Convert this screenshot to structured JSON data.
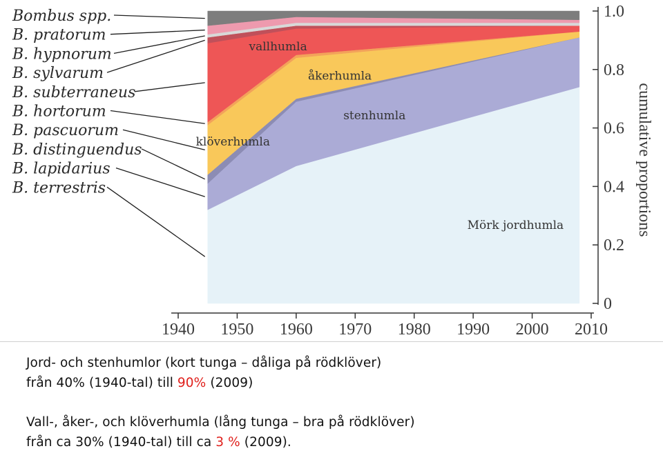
{
  "chart_data": {
    "type": "area",
    "stacked": true,
    "x": [
      1945,
      1960,
      2008
    ],
    "xticks": [
      "1940",
      "1950",
      "1960",
      "1970",
      "1980",
      "1990",
      "2000",
      "2010"
    ],
    "xlim": [
      1940,
      2010
    ],
    "yticks": [
      "0",
      "0.2",
      "0.4",
      "0.6",
      "0.8",
      "1.0"
    ],
    "ylim": [
      0,
      1.0
    ],
    "ylabel": "cumulative proportions",
    "series": [
      {
        "name": "B. terrestris",
        "values": [
          0.32,
          0.47,
          0.74
        ],
        "color": "#e6f2f8"
      },
      {
        "name": "B. lapidarius",
        "values": [
          0.09,
          0.22,
          0.17
        ],
        "color": "#ababd6"
      },
      {
        "name": "B. distinguendus",
        "values": [
          0.03,
          0.01,
          0.0
        ],
        "color": "#8c8cb4"
      },
      {
        "name": "B. pascuorum",
        "values": [
          0.17,
          0.14,
          0.02
        ],
        "color": "#f9c85a"
      },
      {
        "name": "B. hortorum",
        "values": [
          0.01,
          0.01,
          0.0
        ],
        "color": "#f3a25a"
      },
      {
        "name": "B. subterraneus",
        "values": [
          0.27,
          0.09,
          0.02
        ],
        "color": "#ee5656"
      },
      {
        "name": "B. sylvarum",
        "values": [
          0.02,
          0.01,
          0.0
        ],
        "color": "#c0505a"
      },
      {
        "name": "B. hypnorum",
        "values": [
          0.01,
          0.01,
          0.01
        ],
        "color": "#d8d8d8"
      },
      {
        "name": "B. pratorum",
        "values": [
          0.03,
          0.02,
          0.01
        ],
        "color": "#ee9aae"
      },
      {
        "name": "Bombus spp.",
        "values": [
          0.05,
          0.02,
          0.03
        ],
        "color": "#7d7d7d"
      }
    ],
    "legend": [
      "Bombus spp.",
      "B. pratorum",
      "B. hypnorum",
      "B. sylvarum",
      "B. subterraneus",
      "B. hortorum",
      "B. pascuorum",
      "B. distinguendus",
      "B. lapidarius",
      "B. terrestris"
    ],
    "annotations": [
      {
        "text": "vallhumla",
        "x": 1952,
        "y": 0.865
      },
      {
        "text": "åkerhumla",
        "x": 1962,
        "y": 0.765
      },
      {
        "text": "stenhumla",
        "x": 1968,
        "y": 0.63
      },
      {
        "text": "klöverhumla",
        "x": 1943,
        "y": 0.54
      },
      {
        "text": "Mörk jordhumla",
        "x": 1989,
        "y": 0.255
      }
    ]
  },
  "captions": {
    "p1_line1": "Jord- och stenhumlor (kort tunga – dåliga på rödklöver)",
    "p1_line2_a": "från 40% (1940-tal) till ",
    "p1_line2_hl": "90%",
    "p1_line2_b": " (2009)",
    "p2_line1": "Vall-, åker-, och klöverhumla (lång tunga – bra på rödklöver)",
    "p2_line2_a": "från ca 30% (1940-tal) till ca ",
    "p2_line2_hl": "3 %",
    "p2_line2_b": " (2009).",
    "highlight_color": "#e0201c"
  }
}
